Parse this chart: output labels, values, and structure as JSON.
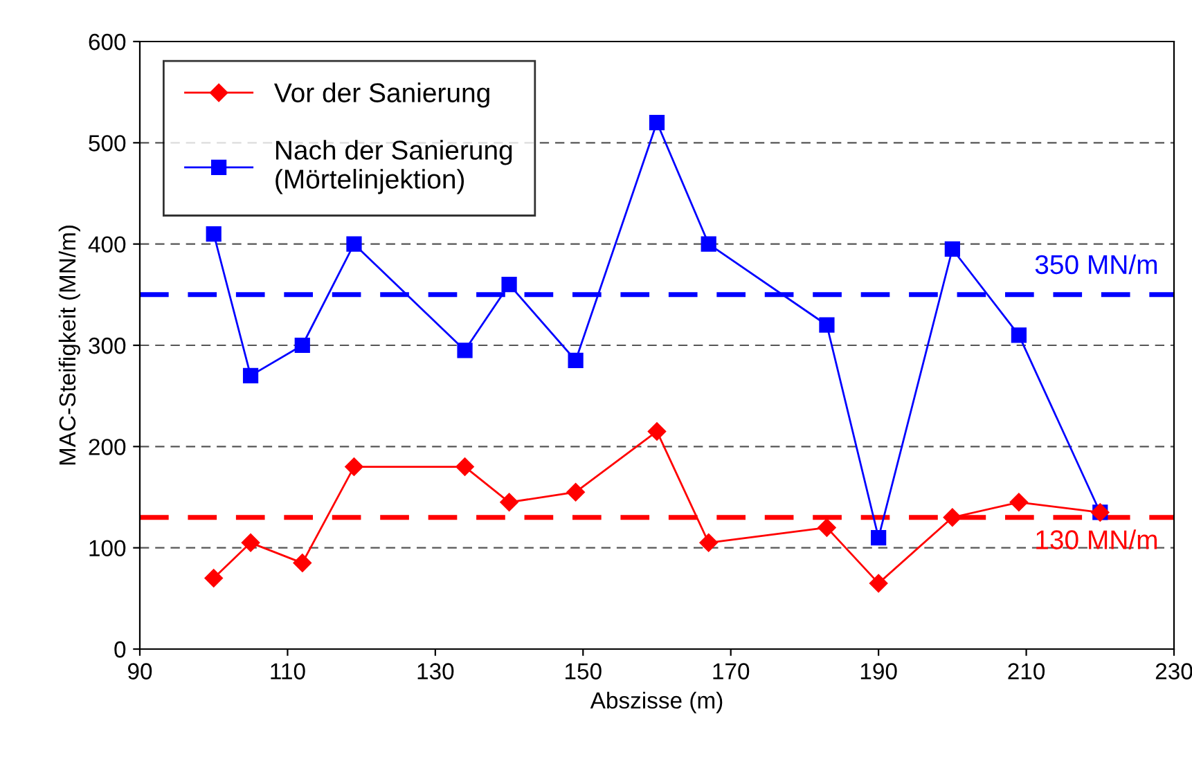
{
  "chart_data": {
    "type": "line",
    "xlabel": "Abszisse (m)",
    "ylabel": "MAC-Steifigkeit (MN/m)",
    "x": [
      100,
      105,
      112,
      119,
      134,
      140,
      149,
      160,
      167,
      183,
      190,
      200,
      209,
      220
    ],
    "series": [
      {
        "name": "Vor der Sanierung",
        "color": "#ff0000",
        "marker": "diamond",
        "values": [
          70,
          105,
          85,
          180,
          180,
          145,
          155,
          215,
          105,
          120,
          65,
          130,
          145,
          135
        ]
      },
      {
        "name": "Nach der Sanierung\n(Mörtelinjektion)",
        "color": "#0000ff",
        "marker": "square",
        "values": [
          410,
          270,
          300,
          400,
          295,
          360,
          285,
          520,
          400,
          320,
          110,
          395,
          310,
          135
        ]
      }
    ],
    "xlim": [
      90,
      230
    ],
    "xticks": [
      90,
      110,
      130,
      150,
      170,
      190,
      210,
      230
    ],
    "ylim": [
      0,
      600
    ],
    "yticks": [
      0,
      100,
      200,
      300,
      400,
      500,
      600
    ],
    "ref_lines": [
      {
        "axis": "y",
        "value": 350,
        "label": "350 MN/m",
        "color": "#0000ff",
        "line_style": "dashed"
      },
      {
        "axis": "y",
        "value": 130,
        "label": "130 MN/m",
        "color": "#ff0000",
        "line_style": "dashed"
      }
    ],
    "grid": "y",
    "legend": "top left",
    "line_style": "solid"
  }
}
